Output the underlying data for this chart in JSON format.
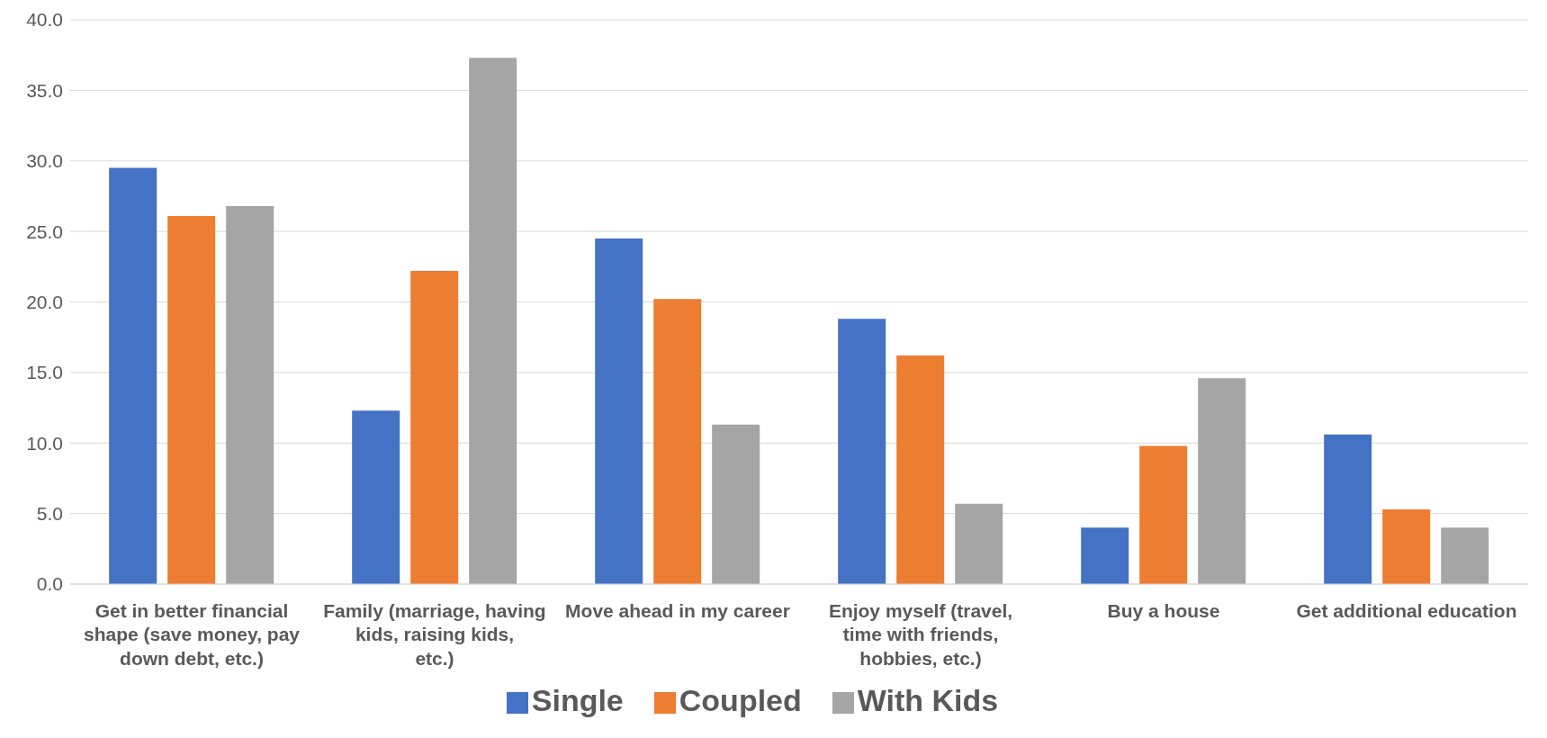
{
  "chart_data": {
    "type": "bar",
    "categories": [
      "Get in better financial shape (save money, pay down debt, etc.)",
      "Family (marriage, having kids, raising kids, etc.)",
      "Move ahead in my career",
      "Enjoy myself (travel, time with friends, hobbies, etc.)",
      "Buy a house",
      "Get additional education"
    ],
    "series": [
      {
        "name": "Single",
        "color": "#4472c4",
        "values": [
          29.5,
          12.3,
          24.5,
          18.8,
          4.0,
          10.6
        ]
      },
      {
        "name": "Coupled",
        "color": "#ed7d31",
        "values": [
          26.1,
          22.2,
          20.2,
          16.2,
          9.8,
          5.3
        ]
      },
      {
        "name": "With Kids",
        "color": "#a5a5a5",
        "values": [
          26.8,
          37.3,
          11.3,
          5.7,
          14.6,
          4.0
        ]
      }
    ],
    "ylim": [
      0,
      40
    ],
    "yticks": [
      {
        "value": 0,
        "label": "0.0"
      },
      {
        "value": 5,
        "label": "5.0"
      },
      {
        "value": 10,
        "label": "10.0"
      },
      {
        "value": 15,
        "label": "15.0"
      },
      {
        "value": 20,
        "label": "20.0"
      },
      {
        "value": 25,
        "label": "25.0"
      },
      {
        "value": 30,
        "label": "30.0"
      },
      {
        "value": 35,
        "label": "35.0"
      },
      {
        "value": 40,
        "label": "40.0"
      }
    ],
    "grid": "y",
    "legend": "bottom"
  }
}
